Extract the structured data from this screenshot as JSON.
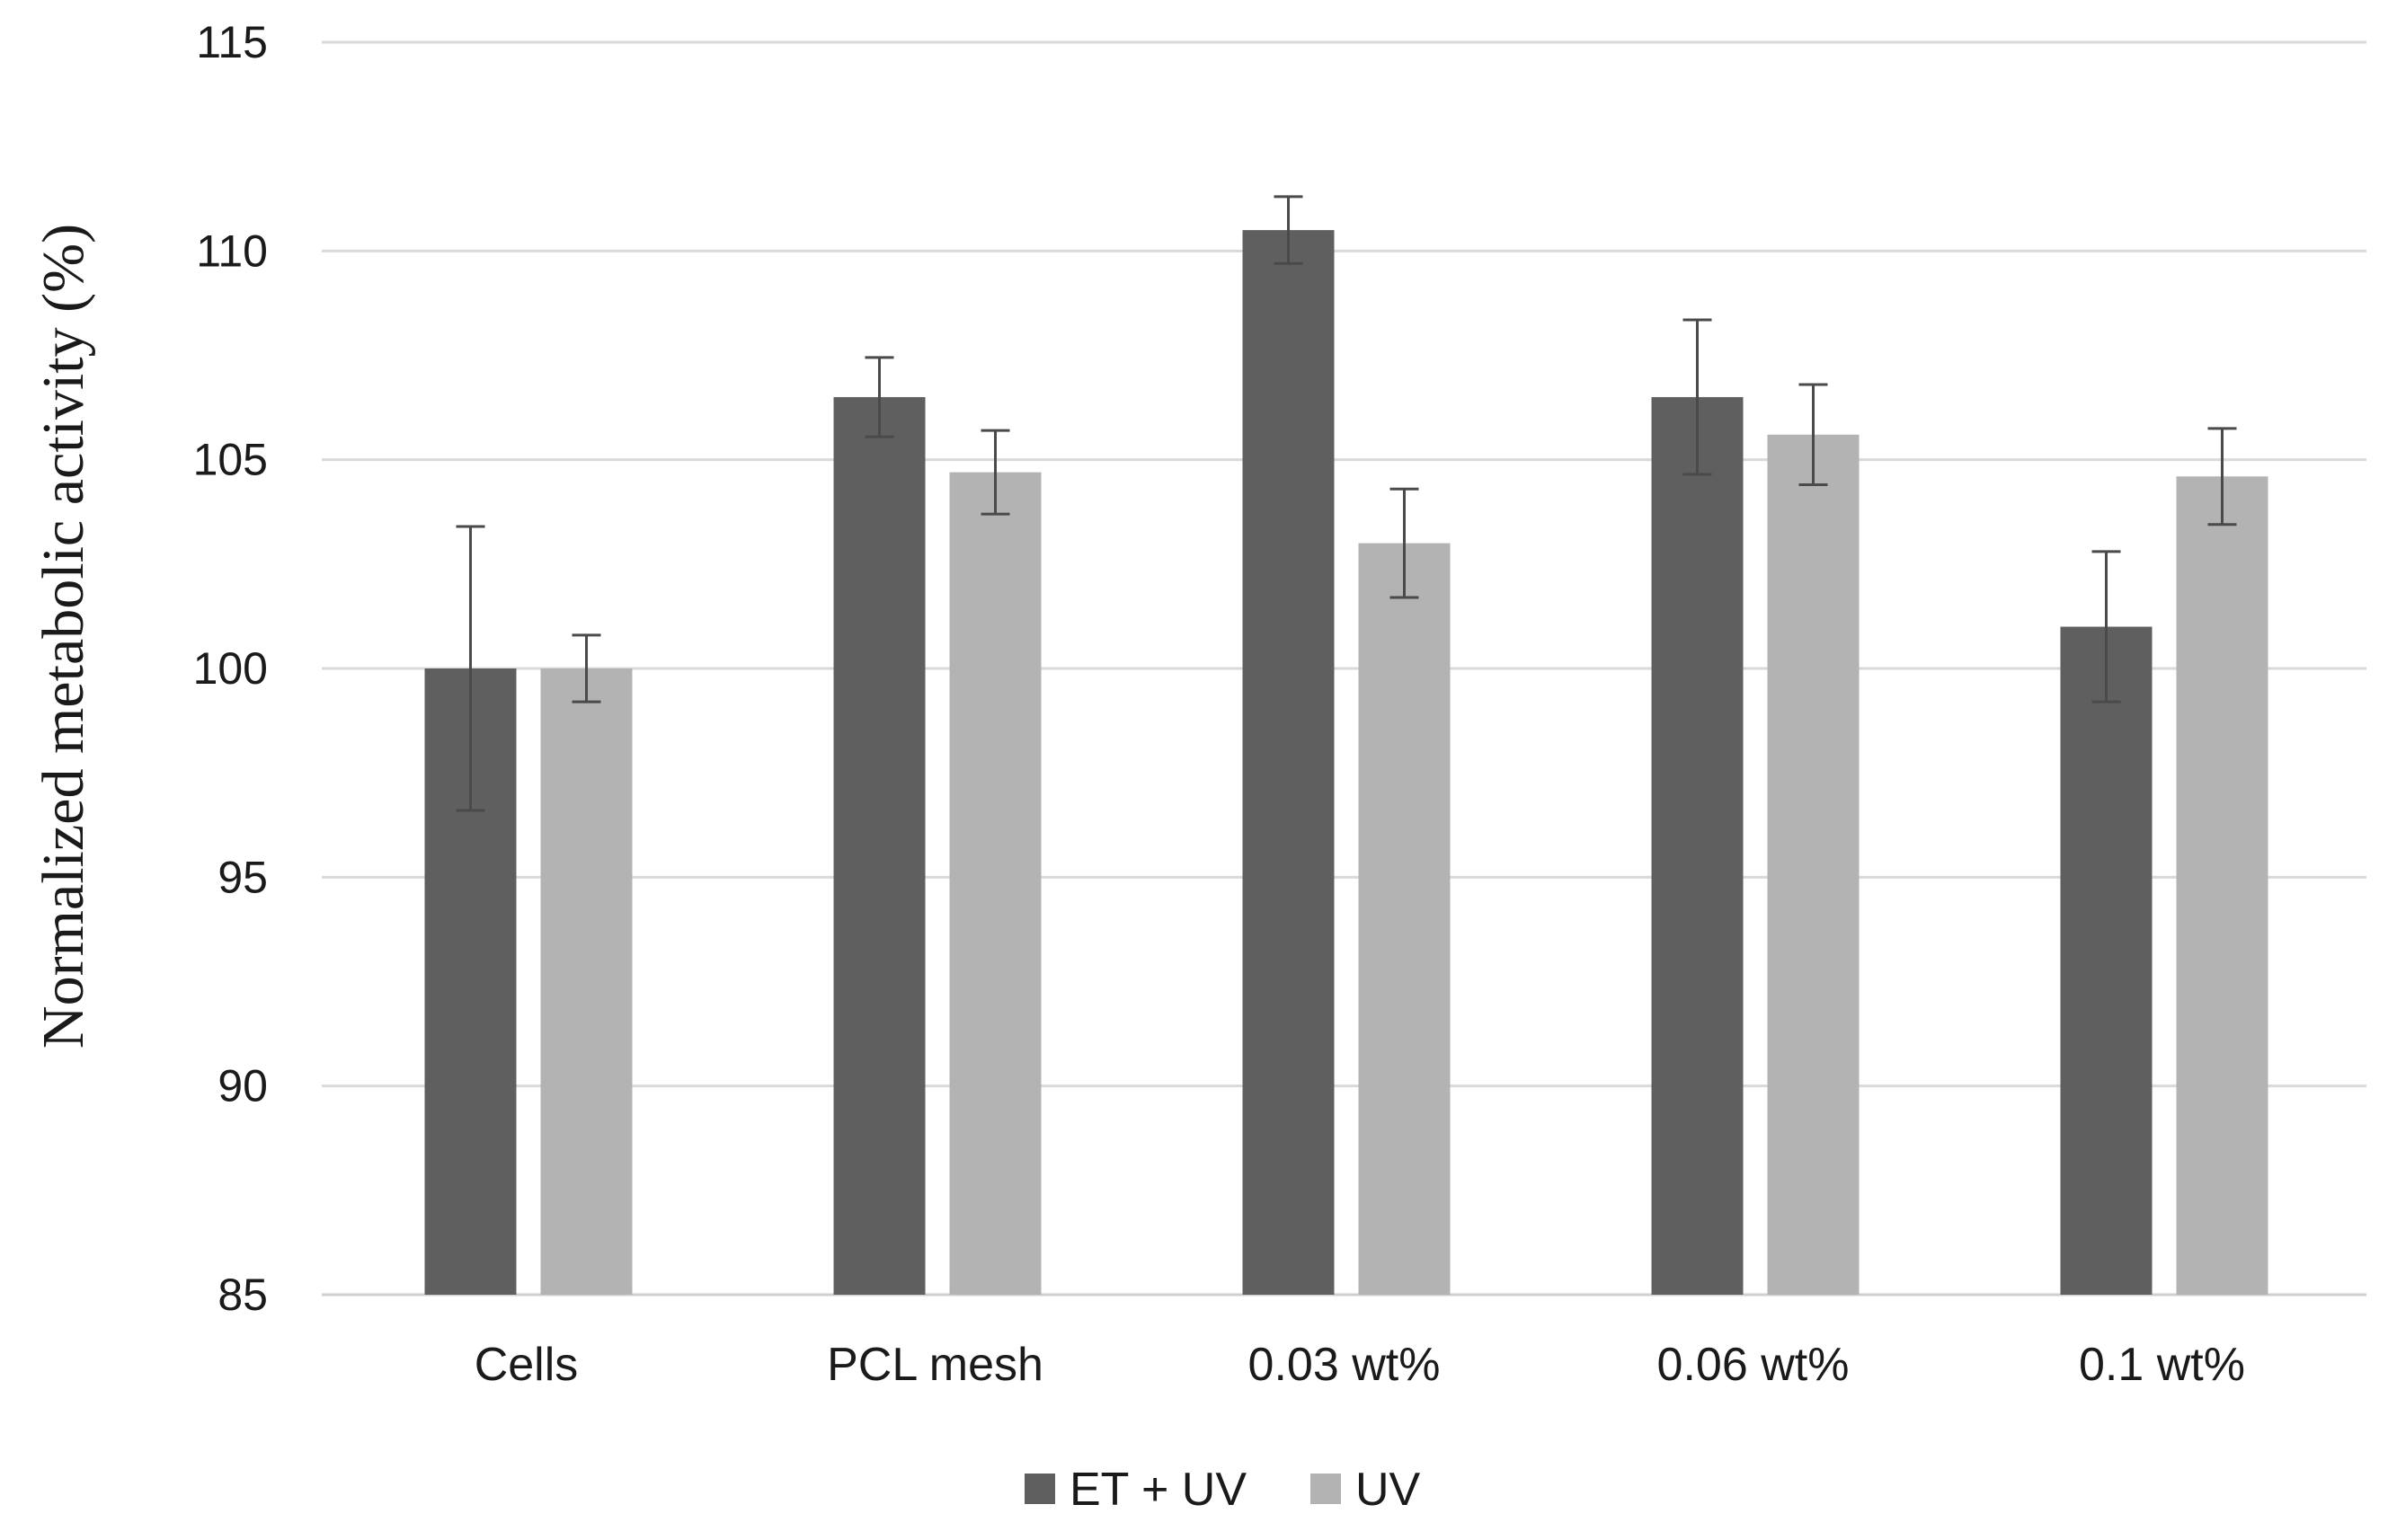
{
  "chart_data": {
    "type": "bar",
    "title": "",
    "xlabel": "",
    "ylabel": "Normalized metabolic activity (%)",
    "ylim": [
      85,
      115
    ],
    "yticks": [
      85,
      90,
      95,
      100,
      105,
      110,
      115
    ],
    "grid": true,
    "legend_position": "bottom",
    "categories": [
      "Cells",
      "PCL mesh",
      "0.03 wt%",
      "0.06 wt%",
      "0.1 wt%"
    ],
    "series": [
      {
        "name": "ET + UV",
        "color": "#5f5f5f",
        "values": [
          100.0,
          106.5,
          110.5,
          106.5,
          101.0
        ],
        "errors": [
          3.4,
          0.95,
          0.8,
          1.85,
          1.8
        ]
      },
      {
        "name": "UV",
        "color": "#b3b3b3",
        "values": [
          100.0,
          104.7,
          103.0,
          105.6,
          104.6
        ],
        "errors": [
          0.8,
          1.0,
          1.3,
          1.2,
          1.15
        ]
      }
    ]
  }
}
